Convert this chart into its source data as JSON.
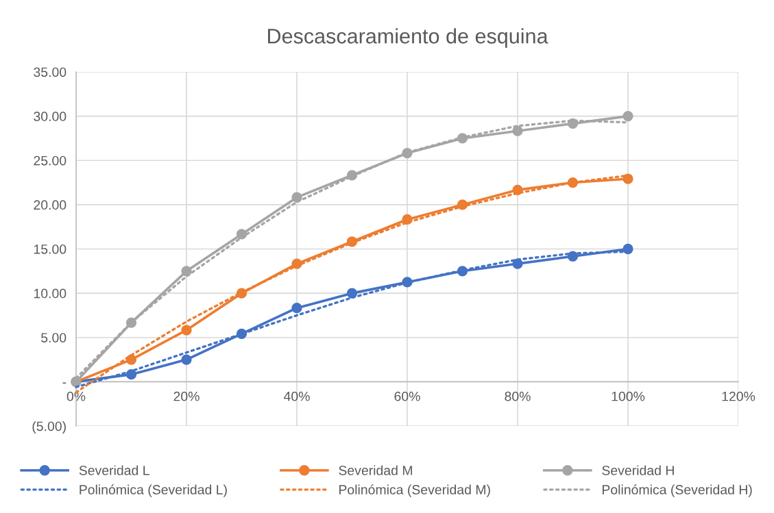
{
  "chart_data": {
    "type": "line",
    "title": "Descascaramiento de esquina",
    "x": [
      0,
      0.1,
      0.2,
      0.3,
      0.4,
      0.5,
      0.6,
      0.7,
      0.8,
      0.9,
      1.0
    ],
    "series": [
      {
        "name": "Severidad L",
        "color": "#4472c4",
        "values": [
          0,
          0.83,
          2.5,
          5.42,
          8.33,
          10,
          11.25,
          12.5,
          13.33,
          14.17,
          15
        ],
        "marker": "circle",
        "line_style": "solid"
      },
      {
        "name": "Severidad M",
        "color": "#ed7d31",
        "values": [
          0,
          2.5,
          5.83,
          10,
          13.33,
          15.83,
          18.33,
          20,
          21.67,
          22.5,
          22.92
        ],
        "marker": "circle",
        "line_style": "solid"
      },
      {
        "name": "Severidad H",
        "color": "#a5a5a5",
        "values": [
          0,
          6.67,
          12.5,
          16.67,
          20.83,
          23.33,
          25.83,
          27.5,
          28.33,
          29.17,
          30
        ],
        "marker": "circle",
        "line_style": "solid"
      },
      {
        "name": "Polinómica (Severidad L)",
        "color": "#4472c4",
        "values": [
          -0.6,
          1.2,
          3.3,
          5.4,
          7.5,
          9.5,
          11.2,
          12.6,
          13.8,
          14.5,
          14.7
        ],
        "marker": "none",
        "line_style": "dotted"
      },
      {
        "name": "Polinómica (Severidad M)",
        "color": "#ed7d31",
        "values": [
          -1.2,
          3.0,
          6.8,
          10.1,
          13.1,
          15.7,
          18.0,
          19.8,
          21.3,
          22.5,
          23.3
        ],
        "marker": "none",
        "line_style": "dotted"
      },
      {
        "name": "Polinómica (Severidad H)",
        "color": "#a5a5a5",
        "values": [
          0.4,
          6.7,
          11.9,
          16.3,
          20.3,
          23.2,
          25.9,
          27.6,
          28.9,
          29.5,
          29.3
        ],
        "marker": "none",
        "line_style": "dotted"
      }
    ],
    "xlim": [
      0,
      1.2
    ],
    "xticks": [
      {
        "value": 0,
        "label": "0%"
      },
      {
        "value": 0.2,
        "label": "20%"
      },
      {
        "value": 0.4,
        "label": "40%"
      },
      {
        "value": 0.6,
        "label": "60%"
      },
      {
        "value": 0.8,
        "label": "80%"
      },
      {
        "value": 1.0,
        "label": "100%"
      },
      {
        "value": 1.2,
        "label": "120%"
      }
    ],
    "ylim": [
      -5,
      35
    ],
    "yticks": [
      {
        "value": -5,
        "label": "(5.00)"
      },
      {
        "value": 0,
        "label": "-"
      },
      {
        "value": 5,
        "label": "5.00"
      },
      {
        "value": 10,
        "label": "10.00"
      },
      {
        "value": 15,
        "label": "15.00"
      },
      {
        "value": 20,
        "label": "20.00"
      },
      {
        "value": 25,
        "label": "25.00"
      },
      {
        "value": 30,
        "label": "30.00"
      },
      {
        "value": 35,
        "label": "35.00"
      }
    ],
    "grid": true,
    "legend": "bottom"
  }
}
